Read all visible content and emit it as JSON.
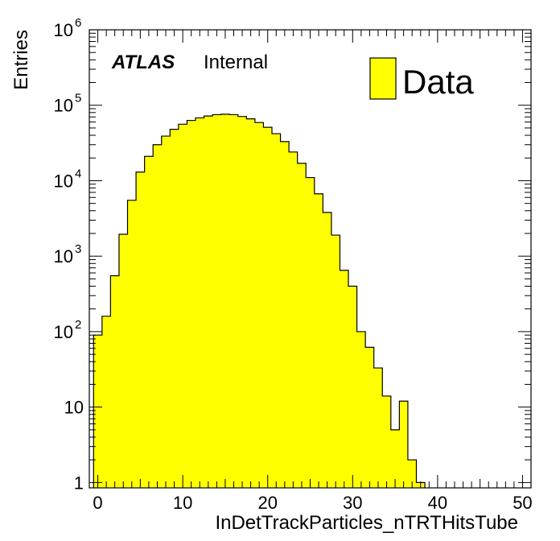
{
  "chart_data": {
    "type": "bar",
    "subtype": "histogram",
    "xlabel": "InDetTrackParticles_nTRTHitsTube",
    "ylabel": "Entries",
    "xlim": [
      -1,
      51
    ],
    "ylim": [
      0.85,
      1000000
    ],
    "yscale": "log",
    "grid": false,
    "legend_position": "top-right",
    "atlas_label": "ATLAS",
    "atlas_status": "Internal",
    "x_ticks": [
      "0",
      "10",
      "20",
      "30",
      "40",
      "50"
    ],
    "y_ticks": [
      {
        "value": 1,
        "base": "1",
        "exp": ""
      },
      {
        "value": 10,
        "base": "10",
        "exp": ""
      },
      {
        "value": 100,
        "base": "10",
        "exp": "2"
      },
      {
        "value": 1000,
        "base": "10",
        "exp": "3"
      },
      {
        "value": 10000,
        "base": "10",
        "exp": "4"
      },
      {
        "value": 100000,
        "base": "10",
        "exp": "5"
      },
      {
        "value": 1000000,
        "base": "10",
        "exp": "6"
      }
    ],
    "series": [
      {
        "name": "Data",
        "color": "#ffff00",
        "bin_width": 1,
        "bin_low_edges": [
          -0.5,
          0.5,
          1.5,
          2.5,
          3.5,
          4.5,
          5.5,
          6.5,
          7.5,
          8.5,
          9.5,
          10.5,
          11.5,
          12.5,
          13.5,
          14.5,
          15.5,
          16.5,
          17.5,
          18.5,
          19.5,
          20.5,
          21.5,
          22.5,
          23.5,
          24.5,
          25.5,
          26.5,
          27.5,
          28.5,
          29.5,
          30.5,
          31.5,
          32.5,
          33.5,
          34.5,
          35.5,
          36.5,
          37.5
        ],
        "values": [
          90,
          160,
          550,
          1950,
          5500,
          13000,
          21000,
          30000,
          39000,
          48000,
          56000,
          63000,
          68000,
          72000,
          75000,
          76000,
          75000,
          71000,
          66000,
          59000,
          51000,
          42000,
          33000,
          24000,
          17000,
          11000,
          6700,
          3800,
          1900,
          650,
          400,
          100,
          62,
          33,
          14,
          5,
          12,
          2,
          1
        ]
      }
    ]
  }
}
